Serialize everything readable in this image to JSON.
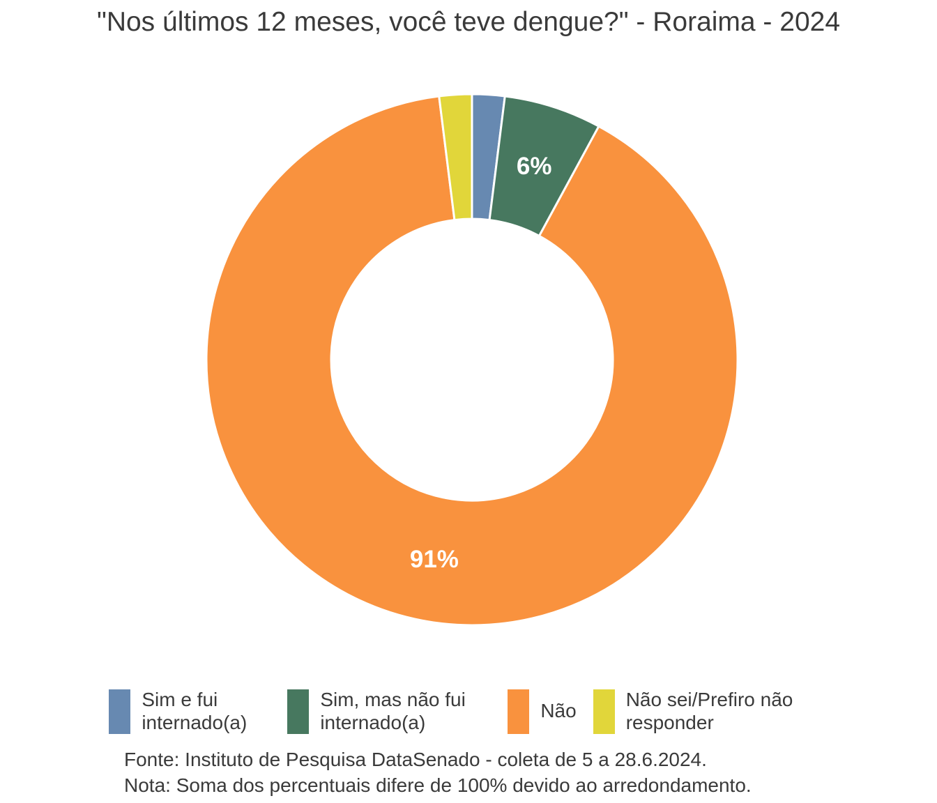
{
  "title": "\"Nos últimos 12 meses, você teve dengue?\" - Roraima - 2024",
  "chart_data": {
    "type": "pie",
    "subtype": "donut",
    "title": "\"Nos últimos 12 meses, você teve dengue?\" - Roraima - 2024",
    "direction": "clockwise",
    "start_at": "12-oclock",
    "inner_radius_ratio": 0.53,
    "label_color": "#ffffff",
    "separator_color": "#ffffff",
    "slices": [
      {
        "category": "Sim e fui internado(a)",
        "value": 2,
        "display_label": "",
        "color": "#6789b1"
      },
      {
        "category": "Sim, mas não fui internado(a)",
        "value": 6,
        "display_label": "6%",
        "color": "#47785f"
      },
      {
        "category": "Não",
        "value": 91,
        "display_label": "91%",
        "color": "#f9923e"
      },
      {
        "category": "Não sei/Prefiro não responder",
        "value": 2,
        "display_label": "",
        "color": "#e1d63a"
      }
    ],
    "legend_position": "bottom"
  },
  "legend": {
    "items": [
      {
        "label": "Sim e fui internado(a)"
      },
      {
        "label": "Sim, mas não fui internado(a)"
      },
      {
        "label": "Não"
      },
      {
        "label": "Não sei/Prefiro não responder"
      }
    ]
  },
  "footer": {
    "source": "Fonte: Instituto de Pesquisa DataSenado - coleta de 5 a 28.6.2024.",
    "note": "Nota: Soma dos percentuais difere de 100% devido ao arredondamento."
  }
}
